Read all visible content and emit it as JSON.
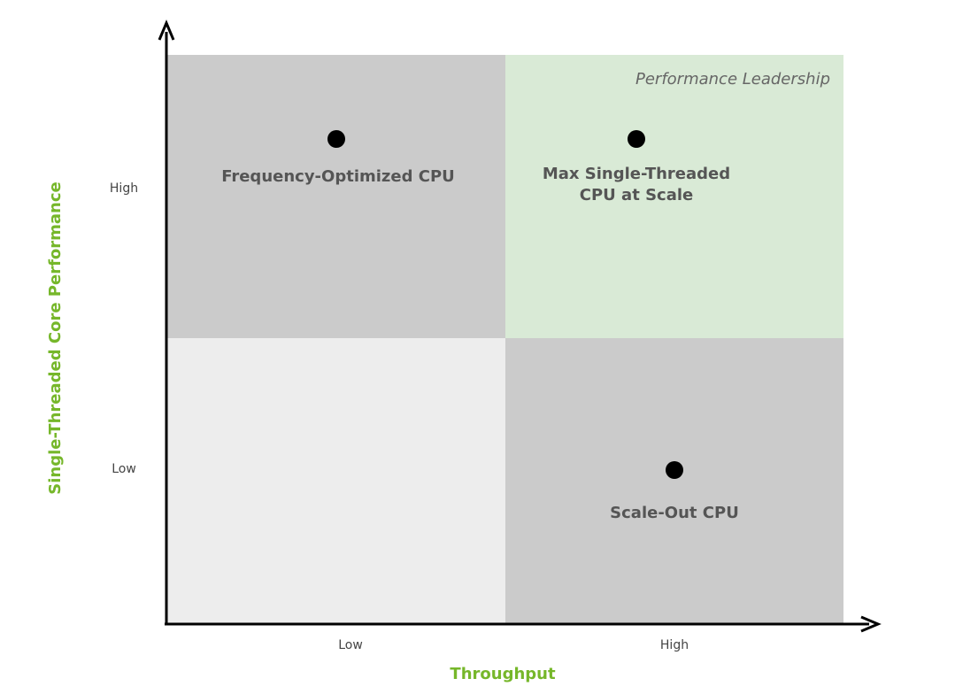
{
  "colors": {
    "quadrant_dark": "#cbcbcb",
    "quadrant_light": "#ededed",
    "quadrant_highlight": "#d9ead6",
    "axis": "#000000",
    "axis_title": "#76b72a",
    "point": "#000000",
    "label": "#555555"
  },
  "x_axis": {
    "title": "Throughput",
    "ticks": [
      "Low",
      "High"
    ]
  },
  "y_axis": {
    "title": "Single-Threaded Core Performance",
    "ticks": [
      "High",
      "Low"
    ]
  },
  "region_label": "Performance Leadership",
  "quadrants": {
    "top_left": {
      "label": "Frequency-Optimized CPU"
    },
    "top_right": {
      "label_line1": "Max Single-Threaded",
      "label_line2": "CPU at Scale"
    },
    "bottom_right": {
      "label": "Scale-Out CPU"
    }
  }
}
